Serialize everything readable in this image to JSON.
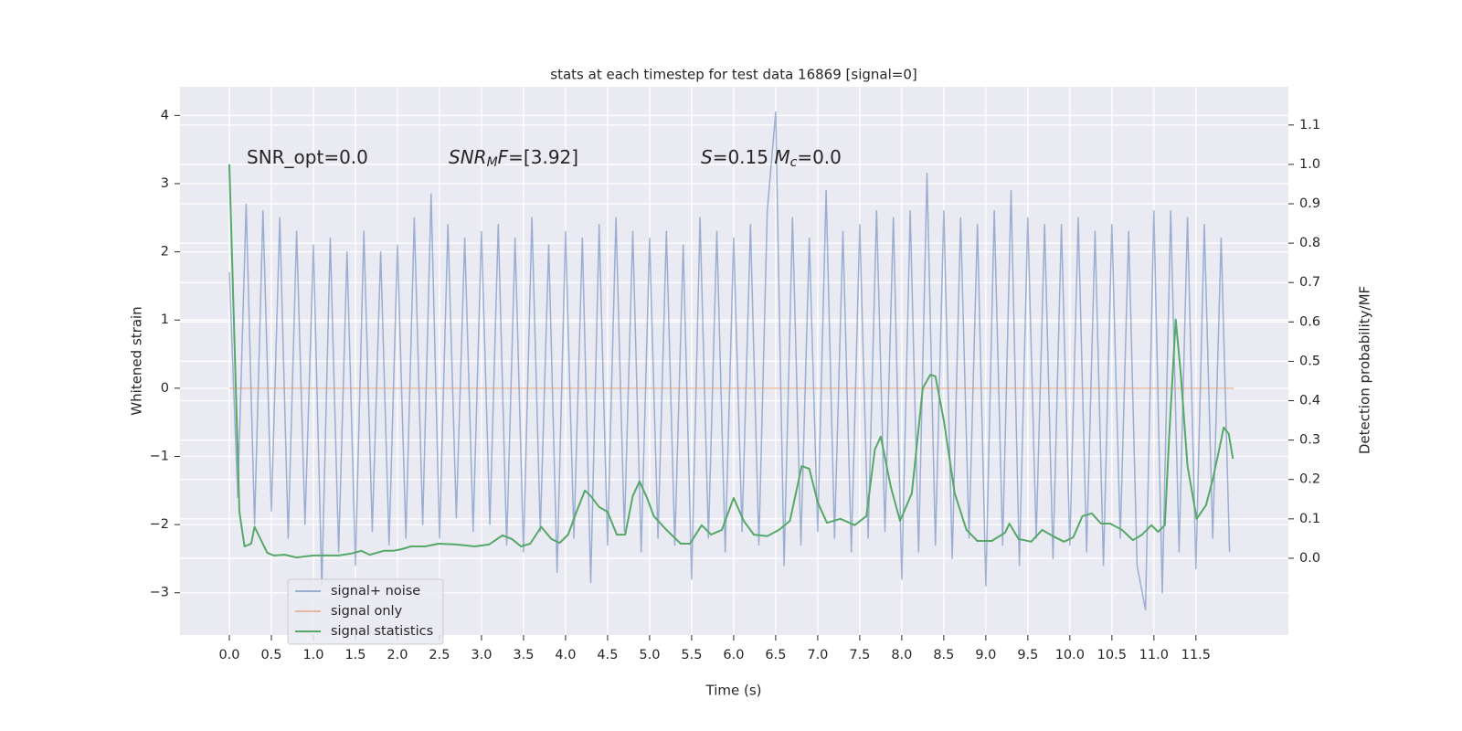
{
  "chart_data": {
    "type": "line",
    "title": "stats at each timestep for test data 16869 [signal=0]",
    "xlabel": "Time (s)",
    "ylabel": "Whitened strain",
    "y2label": "Detection probability/MF",
    "background": "#eaeaf2",
    "grid": true,
    "legend": "lower left",
    "xlim": [
      -0.587,
      12.6
    ],
    "ylim": [
      -3.62,
      4.42
    ],
    "y2lim": [
      -0.195,
      1.197
    ],
    "xticks": [
      {
        "value": 0,
        "label": "0.0"
      },
      {
        "value": 0.5,
        "label": "0.5"
      },
      {
        "value": 1,
        "label": "1.0"
      },
      {
        "value": 1.5,
        "label": "1.5"
      },
      {
        "value": 2,
        "label": "2.0"
      },
      {
        "value": 2.5,
        "label": "2.5"
      },
      {
        "value": 3,
        "label": "3.0"
      },
      {
        "value": 3.5,
        "label": "3.5"
      },
      {
        "value": 4,
        "label": "4.0"
      },
      {
        "value": 4.5,
        "label": "4.5"
      },
      {
        "value": 5,
        "label": "5.0"
      },
      {
        "value": 5.5,
        "label": "5.5"
      },
      {
        "value": 6,
        "label": "6.0"
      },
      {
        "value": 6.5,
        "label": "6.5"
      },
      {
        "value": 7,
        "label": "7.0"
      },
      {
        "value": 7.5,
        "label": "7.5"
      },
      {
        "value": 8,
        "label": "8.0"
      },
      {
        "value": 8.5,
        "label": "8.5"
      },
      {
        "value": 9,
        "label": "9.0"
      },
      {
        "value": 9.5,
        "label": "9.5"
      },
      {
        "value": 10,
        "label": "10.0"
      },
      {
        "value": 10.5,
        "label": "10.5"
      },
      {
        "value": 11,
        "label": "11.0"
      },
      {
        "value": 11.5,
        "label": "11.5"
      }
    ],
    "yticks": [
      {
        "value": -3,
        "label": "−3"
      },
      {
        "value": -2,
        "label": "−2"
      },
      {
        "value": -1,
        "label": "−1"
      },
      0,
      1,
      2,
      3,
      4
    ],
    "y2ticks": [
      {
        "value": 0,
        "label": "0.0"
      },
      {
        "value": 0.1,
        "label": "0.1"
      },
      {
        "value": 0.2,
        "label": "0.2"
      },
      {
        "value": 0.3,
        "label": "0.3"
      },
      {
        "value": 0.4,
        "label": "0.4"
      },
      {
        "value": 0.5,
        "label": "0.5"
      },
      {
        "value": 0.6,
        "label": "0.6"
      },
      {
        "value": 0.7,
        "label": "0.7"
      },
      {
        "value": 0.8,
        "label": "0.8"
      },
      {
        "value": 0.9,
        "label": "0.9"
      },
      {
        "value": 1,
        "label": "1.0"
      },
      {
        "value": 1.1,
        "label": "1.1"
      }
    ],
    "annotations": [
      [
        {
          "text": "SNR_opt=0.0",
          "style": "normal"
        }
      ],
      [
        {
          "text": "SNR",
          "style": "italic"
        },
        {
          "text": "M",
          "style": "sub"
        },
        {
          "text": "F",
          "style": "italic"
        },
        {
          "text": "=[3.92]",
          "style": "normal"
        }
      ],
      [
        {
          "text": "S",
          "style": "italic"
        },
        {
          "text": "=0.15   ",
          "style": "normal"
        },
        {
          "text": "M",
          "style": "italic"
        },
        {
          "text": "c",
          "style": "sub"
        },
        {
          "text": "=0.0",
          "style": "normal"
        }
      ]
    ],
    "series": [
      {
        "name": "signal+ noise",
        "color": "#4c72b0",
        "opacity": 0.5,
        "axis": "y",
        "x": [
          0,
          0.1,
          0.2,
          0.3,
          0.4,
          0.5,
          0.6,
          0.7,
          0.8,
          0.9,
          1,
          1.1,
          1.2,
          1.3,
          1.4,
          1.5,
          1.6,
          1.7,
          1.8,
          1.9,
          2,
          2.1,
          2.2,
          2.3,
          2.4,
          2.5,
          2.6,
          2.7,
          2.8,
          2.9,
          3,
          3.1,
          3.2,
          3.3,
          3.4,
          3.5,
          3.6,
          3.7,
          3.8,
          3.9,
          4,
          4.1,
          4.2,
          4.3,
          4.4,
          4.5,
          4.6,
          4.7,
          4.8,
          4.9,
          5,
          5.1,
          5.2,
          5.3,
          5.4,
          5.5,
          5.6,
          5.7,
          5.8,
          5.9,
          6,
          6.1,
          6.2,
          6.3,
          6.4,
          6.5,
          6.6,
          6.7,
          6.8,
          6.9,
          7,
          7.1,
          7.2,
          7.3,
          7.4,
          7.5,
          7.6,
          7.7,
          7.8,
          7.9,
          8,
          8.1,
          8.2,
          8.3,
          8.4,
          8.5,
          8.6,
          8.7,
          8.8,
          8.9,
          9,
          9.1,
          9.2,
          9.3,
          9.4,
          9.5,
          9.6,
          9.7,
          9.8,
          9.9,
          10,
          10.1,
          10.2,
          10.3,
          10.4,
          10.5,
          10.6,
          10.7,
          10.8,
          10.9,
          11,
          11.1,
          11.2,
          11.3,
          11.4,
          11.5,
          11.6,
          11.7,
          11.8,
          11.9
        ],
        "values": [
          1.7,
          -1.6,
          2.7,
          -2.0,
          2.6,
          -1.8,
          2.5,
          -2.2,
          2.3,
          -2.0,
          2.1,
          -2.9,
          2.2,
          -2.4,
          2.0,
          -2.6,
          2.3,
          -2.1,
          2.0,
          -2.3,
          2.1,
          -2.2,
          2.5,
          -2.0,
          2.85,
          -2.2,
          2.4,
          -1.9,
          2.2,
          -2.1,
          2.3,
          -2.0,
          2.4,
          -2.3,
          2.2,
          -2.4,
          2.5,
          -2.1,
          2.1,
          -2.7,
          2.3,
          -2.2,
          2.2,
          -2.85,
          2.4,
          -2.3,
          2.5,
          -2.1,
          2.3,
          -2.4,
          2.2,
          -2.2,
          2.3,
          -2.3,
          2.1,
          -2.8,
          2.5,
          -2.2,
          2.3,
          -2.4,
          2.2,
          -2.1,
          2.4,
          -2.3,
          2.6,
          4.05,
          -2.6,
          2.5,
          -2.3,
          2.2,
          -2.1,
          2.9,
          -2.2,
          2.3,
          -2.4,
          2.4,
          -2.2,
          2.6,
          -2.1,
          2.5,
          -2.8,
          2.6,
          -2.4,
          3.15,
          -2.3,
          2.6,
          -2.5,
          2.5,
          -2.2,
          2.4,
          -2.9,
          2.6,
          -2.3,
          2.9,
          -2.6,
          2.5,
          -2.2,
          2.4,
          -2.5,
          2.4,
          -2.3,
          2.5,
          -2.4,
          2.3,
          -2.6,
          2.4,
          -2.2,
          2.3,
          -2.6,
          -3.25,
          2.6,
          -3.0,
          2.6,
          -2.4,
          2.5,
          -2.65,
          2.4,
          -2.2,
          2.2,
          -2.4
        ]
      },
      {
        "name": "signal only",
        "color": "#dd8452",
        "opacity": 0.5,
        "axis": "y",
        "x": [
          0,
          11.95
        ],
        "values": [
          0,
          0
        ]
      },
      {
        "name": "signal statistics",
        "color": "#55a868",
        "opacity": 1,
        "axis": "y2",
        "x": [
          0,
          0.12,
          0.18,
          0.26,
          0.3,
          0.45,
          0.53,
          0.66,
          0.8,
          1.0,
          1.3,
          1.45,
          1.57,
          1.67,
          1.84,
          1.95,
          2.05,
          2.16,
          2.33,
          2.49,
          2.7,
          2.92,
          3.09,
          3.25,
          3.36,
          3.47,
          3.58,
          3.71,
          3.83,
          3.93,
          4.03,
          4.14,
          4.23,
          4.3,
          4.4,
          4.5,
          4.61,
          4.71,
          4.8,
          4.88,
          4.97,
          5.05,
          5.2,
          5.37,
          5.48,
          5.62,
          5.73,
          5.86,
          6.0,
          6.12,
          6.24,
          6.4,
          6.54,
          6.67,
          6.81,
          6.9,
          7.0,
          7.11,
          7.27,
          7.44,
          7.58,
          7.68,
          7.75,
          7.87,
          7.98,
          8.12,
          8.25,
          8.34,
          8.4,
          8.5,
          8.63,
          8.77,
          8.9,
          9.07,
          9.23,
          9.28,
          9.39,
          9.54,
          9.67,
          9.8,
          9.93,
          10.04,
          10.15,
          10.26,
          10.37,
          10.48,
          10.62,
          10.75,
          10.86,
          10.97,
          11.05,
          11.13,
          11.18,
          11.26,
          11.32,
          11.4,
          11.51,
          11.62,
          11.7,
          11.78,
          11.83,
          11.89,
          11.94
        ],
        "values": [
          1.0,
          0.118,
          0.03,
          0.037,
          0.08,
          0.014,
          0.007,
          0.009,
          0.002,
          0.007,
          0.007,
          0.012,
          0.019,
          0.009,
          0.019,
          0.019,
          0.023,
          0.03,
          0.03,
          0.037,
          0.035,
          0.03,
          0.035,
          0.058,
          0.049,
          0.03,
          0.037,
          0.08,
          0.049,
          0.039,
          0.06,
          0.123,
          0.172,
          0.158,
          0.13,
          0.118,
          0.06,
          0.06,
          0.158,
          0.195,
          0.153,
          0.107,
          0.072,
          0.037,
          0.037,
          0.084,
          0.06,
          0.072,
          0.153,
          0.095,
          0.06,
          0.056,
          0.072,
          0.095,
          0.234,
          0.227,
          0.142,
          0.09,
          0.1,
          0.084,
          0.107,
          0.276,
          0.309,
          0.181,
          0.095,
          0.165,
          0.432,
          0.466,
          0.462,
          0.35,
          0.165,
          0.072,
          0.044,
          0.044,
          0.065,
          0.088,
          0.049,
          0.042,
          0.072,
          0.056,
          0.042,
          0.053,
          0.107,
          0.114,
          0.088,
          0.088,
          0.072,
          0.046,
          0.06,
          0.084,
          0.067,
          0.084,
          0.304,
          0.606,
          0.466,
          0.234,
          0.1,
          0.135,
          0.2,
          0.28,
          0.332,
          0.316,
          0.253
        ]
      }
    ]
  }
}
